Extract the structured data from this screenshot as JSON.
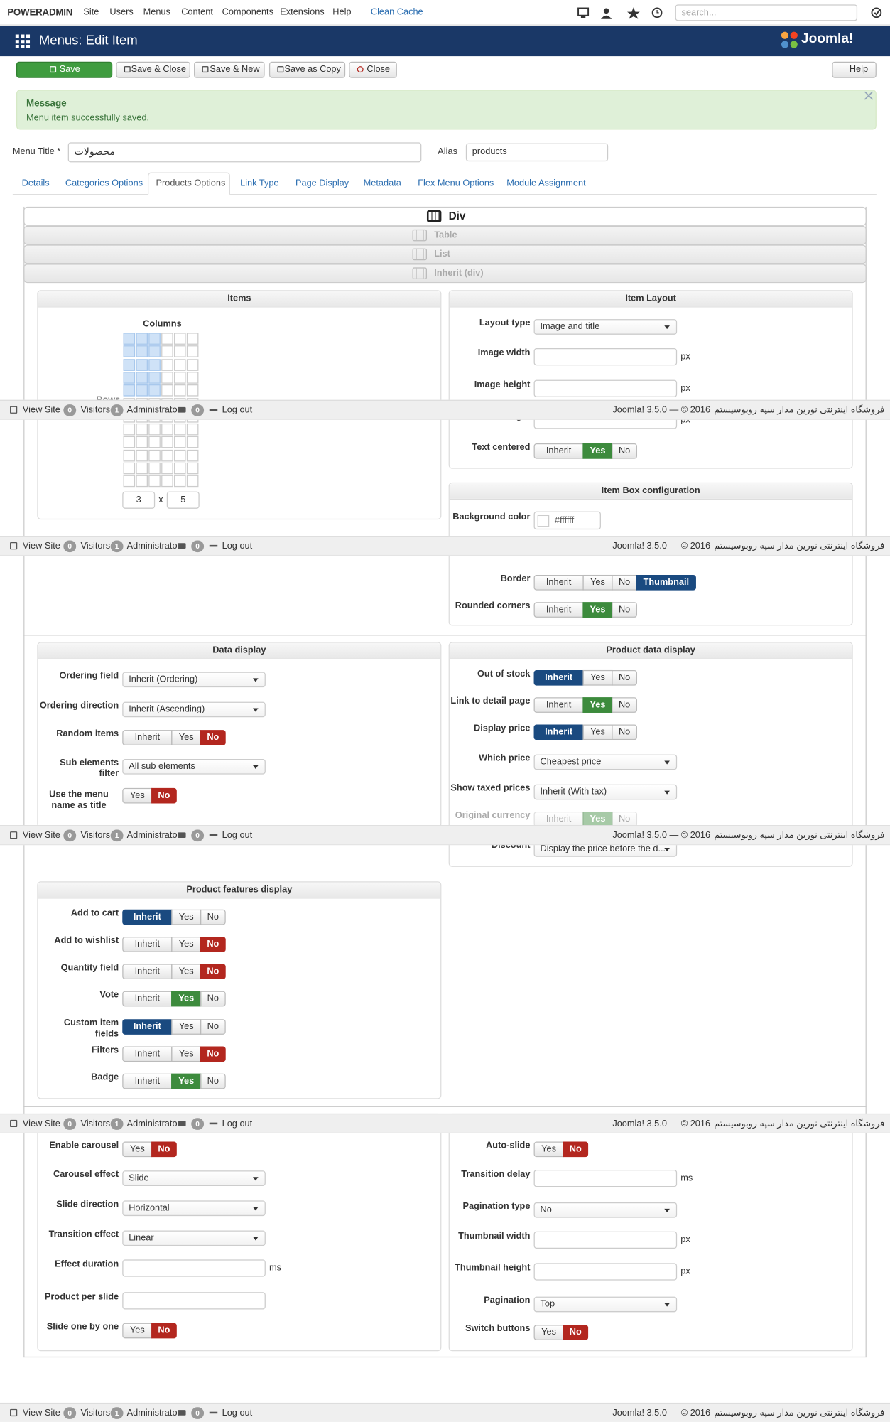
{
  "topbar": {
    "brand": "POWERADMIN",
    "menu": [
      "Site",
      "Users",
      "Menus",
      "Content",
      "Components",
      "Extensions",
      "Help"
    ],
    "clean_cache": "Clean Cache",
    "search_placeholder": "search..."
  },
  "header": {
    "title": "Menus: Edit Item",
    "logo": "Joomla!"
  },
  "toolbar": {
    "buttons": [
      "Save",
      "Save & Close",
      "Save & New",
      "Save as Copy",
      "Close"
    ],
    "help": "Help"
  },
  "message": {
    "heading": "Message",
    "text": "Menu item successfully saved."
  },
  "form": {
    "menu_title_label": "Menu Title *",
    "menu_title": "محصولات",
    "alias_label": "Alias",
    "alias": "products"
  },
  "tabs": {
    "items": [
      "Details",
      "Categories Options",
      "Products Options",
      "Link Type",
      "Page Display",
      "Metadata",
      "Flex Menu Options",
      "Module Assignment"
    ],
    "active": 2
  },
  "layout_options": {
    "items": [
      "Div",
      "Table",
      "List",
      "Inherit (div)"
    ],
    "active": 0
  },
  "items_panel": {
    "title": "Items",
    "columns_label": "Columns",
    "rows_label": "Rows",
    "columns": "3",
    "times": "x",
    "rows": "5"
  },
  "panels": [
    {
      "title": "Item Layout",
      "fields": [
        {
          "label": "Layout type",
          "control": "select",
          "value": "Image and title"
        },
        {
          "label": "Image width",
          "control": "input",
          "unit": "px"
        },
        {
          "label": "Image height",
          "control": "input",
          "unit": "px"
        },
        {
          "label": "Pane height",
          "control": "input",
          "unit": "px"
        },
        {
          "label": "Text centered",
          "control": "toggle",
          "options": [
            "Inherit",
            "Yes",
            "No"
          ],
          "selected": 1,
          "selected_color": "#3d8b3d"
        }
      ]
    },
    {
      "title": "Item Box configuration",
      "fields": [
        {
          "label": "Background color",
          "control": "color",
          "value": "#ffffff"
        },
        {
          "label": "Border",
          "control": "toggle",
          "options": [
            "Inherit",
            "Yes",
            "No",
            "Thumbnail"
          ],
          "selected": 3,
          "selected_color": "#1a4a80"
        },
        {
          "label": "Rounded corners",
          "control": "toggle",
          "options": [
            "Inherit",
            "Yes",
            "No"
          ],
          "selected": 1,
          "selected_color": "#3d8b3d"
        }
      ]
    },
    {
      "title": "Data display",
      "fields": [
        {
          "label": "Ordering field",
          "control": "select",
          "value": "Inherit (Ordering)"
        },
        {
          "label": "Ordering direction",
          "control": "select",
          "value": "Inherit (Ascending)"
        },
        {
          "label": "Random items",
          "control": "toggle",
          "options": [
            "Inherit",
            "Yes",
            "No"
          ],
          "selected": 2,
          "selected_color": "#b3271f"
        },
        {
          "label": "Sub elements filter",
          "control": "select",
          "value": "All sub elements"
        },
        {
          "label": "Use the menu name as title",
          "control": "toggle",
          "options": [
            "Yes",
            "No"
          ],
          "selected": 1,
          "selected_color": "#b3271f"
        }
      ]
    },
    {
      "title": "Product data display",
      "fields": [
        {
          "label": "Out of stock",
          "control": "toggle",
          "options": [
            "Inherit",
            "Yes",
            "No"
          ],
          "selected": 0,
          "selected_color": "#1a4a80"
        },
        {
          "label": "Link to detail page",
          "control": "toggle",
          "options": [
            "Inherit",
            "Yes",
            "No"
          ],
          "selected": 1,
          "selected_color": "#3d8b3d"
        },
        {
          "label": "Display price",
          "control": "toggle",
          "options": [
            "Inherit",
            "Yes",
            "No"
          ],
          "selected": 0,
          "selected_color": "#1a4a80"
        },
        {
          "label": "Which price",
          "control": "select",
          "value": "Cheapest price"
        },
        {
          "label": "Show taxed prices",
          "control": "select",
          "value": "Inherit (With tax)"
        },
        {
          "label": "Original currency",
          "control": "toggle",
          "options": [
            "Inherit",
            "Yes",
            "No"
          ],
          "selected": 1,
          "selected_color": "#3d8b3d",
          "disabled": true
        },
        {
          "label": "Discount",
          "control": "select",
          "value": "Display the price before the d..."
        }
      ]
    },
    {
      "title": "Product features display",
      "fields": [
        {
          "label": "Add to cart",
          "control": "toggle",
          "options": [
            "Inherit",
            "Yes",
            "No"
          ],
          "selected": 0,
          "selected_color": "#1a4a80"
        },
        {
          "label": "Add to wishlist",
          "control": "toggle",
          "options": [
            "Inherit",
            "Yes",
            "No"
          ],
          "selected": 2,
          "selected_color": "#b3271f"
        },
        {
          "label": "Quantity field",
          "control": "toggle",
          "options": [
            "Inherit",
            "Yes",
            "No"
          ],
          "selected": 2,
          "selected_color": "#b3271f"
        },
        {
          "label": "Vote",
          "control": "toggle",
          "options": [
            "Inherit",
            "Yes",
            "No"
          ],
          "selected": 1,
          "selected_color": "#3d8b3d"
        },
        {
          "label": "Custom item fields",
          "control": "toggle",
          "options": [
            "Inherit",
            "Yes",
            "No"
          ],
          "selected": 0,
          "selected_color": "#1a4a80"
        },
        {
          "label": "Filters",
          "control": "toggle",
          "options": [
            "Inherit",
            "Yes",
            "No"
          ],
          "selected": 2,
          "selected_color": "#b3271f"
        },
        {
          "label": "Badge",
          "control": "toggle",
          "options": [
            "Inherit",
            "Yes",
            "No"
          ],
          "selected": 1,
          "selected_color": "#3d8b3d"
        }
      ]
    },
    {
      "fields": [
        {
          "label": "Enable carousel",
          "control": "toggle",
          "options": [
            "Yes",
            "No"
          ],
          "selected": 1,
          "selected_color": "#b3271f"
        },
        {
          "label": "Carousel effect",
          "control": "select",
          "value": "Slide"
        },
        {
          "label": "Slide direction",
          "control": "select",
          "value": "Horizontal"
        },
        {
          "label": "Transition effect",
          "control": "select",
          "value": "Linear"
        },
        {
          "label": "Effect duration",
          "control": "input",
          "unit": "ms"
        },
        {
          "label": "Product per slide",
          "control": "input"
        },
        {
          "label": "Slide one by one",
          "control": "toggle",
          "options": [
            "Yes",
            "No"
          ],
          "selected": 1,
          "selected_color": "#b3271f"
        }
      ]
    },
    {
      "fields": [
        {
          "label": "Auto-slide",
          "control": "toggle",
          "options": [
            "Yes",
            "No"
          ],
          "selected": 1,
          "selected_color": "#b3271f"
        },
        {
          "label": "Transition delay",
          "control": "input",
          "unit": "ms"
        },
        {
          "label": "Pagination type",
          "control": "select",
          "value": "No"
        },
        {
          "label": "Thumbnail width",
          "control": "input",
          "unit": "px"
        },
        {
          "label": "Thumbnail height",
          "control": "input",
          "unit": "px"
        },
        {
          "label": "Pagination",
          "control": "select",
          "value": "Top"
        },
        {
          "label": "Switch buttons",
          "control": "toggle",
          "options": [
            "Yes",
            "No"
          ],
          "selected": 1,
          "selected_color": "#b3271f"
        }
      ]
    }
  ],
  "footer": {
    "view_site": "View Site",
    "visitors_count": "0",
    "visitors": "Visitors",
    "admins_count": "1",
    "administrator": "Administrator",
    "messages_count": "0",
    "logout": "Log out",
    "version": "Joomla! 3.5.0 — © 2016",
    "site": "فروشگاه اینترنتی نورین مدار سپه روبوسیستم"
  }
}
